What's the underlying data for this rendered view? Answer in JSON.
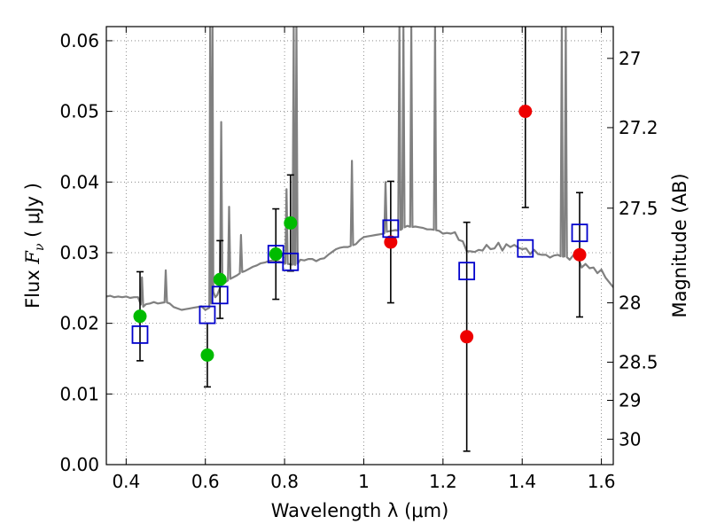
{
  "chart_data": {
    "type": "scatter",
    "xlabel": "Wavelength  λ (μm)",
    "ylabel_left_prefix": "Flux ",
    "ylabel_left_symbol": "F",
    "ylabel_left_sub": "ν",
    "ylabel_left_suffix": "  ( μJy )",
    "ylabel_right": "Magnitude (AB)",
    "xlim": [
      0.35,
      1.63
    ],
    "ylim": [
      0.0,
      0.062
    ],
    "grid": true,
    "x_ticks": [
      0.4,
      0.6,
      0.8,
      1.0,
      1.2,
      1.4,
      1.6
    ],
    "x_tick_labels": [
      "0.4",
      "0.6",
      "0.8",
      "1",
      "1.2",
      "1.4",
      "1.6"
    ],
    "y_ticks": [
      0.0,
      0.01,
      0.02,
      0.03,
      0.04,
      0.05,
      0.06
    ],
    "y_tick_labels": [
      "0.00",
      "0.01",
      "0.02",
      "0.03",
      "0.04",
      "0.05",
      "0.06"
    ],
    "right_ticks": [
      {
        "flux": 0.0575,
        "label": "27"
      },
      {
        "flux": 0.0477,
        "label": "27.2"
      },
      {
        "flux": 0.0363,
        "label": "27.5"
      },
      {
        "flux": 0.0229,
        "label": "28"
      },
      {
        "flux": 0.0145,
        "label": "28.5"
      },
      {
        "flux": 0.0091,
        "label": "29"
      },
      {
        "flux": 0.0036,
        "label": "30"
      }
    ],
    "colors": {
      "spectrum": "#808080",
      "green": "#00bb00",
      "red": "#ee0000",
      "model": "#0000cc",
      "errorbar": "#000000",
      "grid": "#777777"
    },
    "spectrum": {
      "x": [
        0.35,
        0.36,
        0.37,
        0.38,
        0.39,
        0.4,
        0.41,
        0.42,
        0.43,
        0.44,
        0.45,
        0.46,
        0.47,
        0.48,
        0.49,
        0.5,
        0.51,
        0.52,
        0.53,
        0.54,
        0.55,
        0.56,
        0.57,
        0.58,
        0.59,
        0.6,
        0.61,
        0.615,
        0.62,
        0.625,
        0.63,
        0.64,
        0.65,
        0.66,
        0.67,
        0.68,
        0.69,
        0.7,
        0.71,
        0.72,
        0.73,
        0.74,
        0.75,
        0.76,
        0.77,
        0.78,
        0.79,
        0.8,
        0.81,
        0.82,
        0.825,
        0.83,
        0.84,
        0.85,
        0.86,
        0.87,
        0.88,
        0.89,
        0.9,
        0.91,
        0.92,
        0.93,
        0.94,
        0.95,
        0.96,
        0.97,
        0.98,
        0.99,
        1.0,
        1.01,
        1.02,
        1.03,
        1.04,
        1.05,
        1.06,
        1.07,
        1.08,
        1.09,
        1.1,
        1.11,
        1.12,
        1.13,
        1.14,
        1.15,
        1.16,
        1.17,
        1.18,
        1.19,
        1.2,
        1.21,
        1.22,
        1.23,
        1.24,
        1.25,
        1.26,
        1.27,
        1.28,
        1.29,
        1.3,
        1.31,
        1.32,
        1.33,
        1.34,
        1.35,
        1.36,
        1.37,
        1.38,
        1.39,
        1.4,
        1.41,
        1.42,
        1.43,
        1.44,
        1.45,
        1.46,
        1.47,
        1.48,
        1.49,
        1.5,
        1.51,
        1.52,
        1.53,
        1.54,
        1.55,
        1.56,
        1.57,
        1.58,
        1.59,
        1.6,
        1.61,
        1.62,
        1.63
      ],
      "y": [
        0.0238,
        0.0239,
        0.0237,
        0.0238,
        0.0237,
        0.0238,
        0.0236,
        0.0237,
        0.0237,
        0.0222,
        0.0227,
        0.0228,
        0.023,
        0.0228,
        0.0229,
        0.023,
        0.0228,
        0.0223,
        0.0221,
        0.0219,
        0.022,
        0.0221,
        0.0222,
        0.0223,
        0.0224,
        0.0219,
        0.0222,
        0.0228,
        0.0245,
        0.0237,
        0.024,
        0.0255,
        0.0258,
        0.0262,
        0.0265,
        0.0268,
        0.0272,
        0.0274,
        0.0277,
        0.028,
        0.0282,
        0.0285,
        0.0286,
        0.0288,
        0.0289,
        0.0288,
        0.0287,
        0.0285,
        0.0284,
        0.0283,
        0.0283,
        0.0282,
        0.029,
        0.0289,
        0.0291,
        0.0291,
        0.0288,
        0.0291,
        0.0292,
        0.0297,
        0.0301,
        0.0305,
        0.0307,
        0.0308,
        0.0308,
        0.031,
        0.0312,
        0.0318,
        0.0322,
        0.0323,
        0.0324,
        0.0325,
        0.0326,
        0.0327,
        0.033,
        0.0331,
        0.0332,
        0.0331,
        0.0335,
        0.0338,
        0.0336,
        0.0337,
        0.0336,
        0.0335,
        0.0333,
        0.0333,
        0.0332,
        0.0331,
        0.0327,
        0.0328,
        0.0327,
        0.0329,
        0.0318,
        0.0316,
        0.0302,
        0.0302,
        0.0301,
        0.0304,
        0.0303,
        0.0311,
        0.0305,
        0.0306,
        0.0314,
        0.0303,
        0.0312,
        0.0308,
        0.0311,
        0.0307,
        0.0305,
        0.0306,
        0.0298,
        0.0304,
        0.0298,
        0.0297,
        0.0297,
        0.0293,
        0.0296,
        0.0297,
        0.0294,
        0.0295,
        0.029,
        0.0297,
        0.0295,
        0.0279,
        0.0284,
        0.0278,
        0.0279,
        0.0271,
        0.0276,
        0.0265,
        0.0258,
        0.0251
      ],
      "emission_lines": [
        {
          "x": 0.44,
          "peak": 0.0265
        },
        {
          "x": 0.5,
          "peak": 0.0275
        },
        {
          "x": 0.612,
          "peak": 0.062
        },
        {
          "x": 0.618,
          "peak": 0.062
        },
        {
          "x": 0.64,
          "peak": 0.0485
        },
        {
          "x": 0.66,
          "peak": 0.0365
        },
        {
          "x": 0.69,
          "peak": 0.0325
        },
        {
          "x": 0.805,
          "peak": 0.039
        },
        {
          "x": 0.823,
          "peak": 0.062
        },
        {
          "x": 0.83,
          "peak": 0.062
        },
        {
          "x": 0.97,
          "peak": 0.043
        },
        {
          "x": 1.055,
          "peak": 0.04
        },
        {
          "x": 1.09,
          "peak": 0.062
        },
        {
          "x": 1.1,
          "peak": 0.062
        },
        {
          "x": 1.12,
          "peak": 0.062
        },
        {
          "x": 1.18,
          "peak": 0.062
        },
        {
          "x": 1.5,
          "peak": 0.062
        },
        {
          "x": 1.51,
          "peak": 0.062
        }
      ]
    },
    "series": [
      {
        "marker": "circle",
        "color": "green",
        "points": [
          {
            "x": 0.435,
            "y": 0.021,
            "err": 0.0063
          },
          {
            "x": 0.605,
            "y": 0.0155,
            "err": 0.0045
          },
          {
            "x": 0.637,
            "y": 0.0262,
            "err": 0.0055
          },
          {
            "x": 0.778,
            "y": 0.0298,
            "err": 0.0064
          },
          {
            "x": 0.815,
            "y": 0.0342,
            "err": 0.0068
          }
        ]
      },
      {
        "marker": "circle",
        "color": "red",
        "points": [
          {
            "x": 1.068,
            "y": 0.0315,
            "err": 0.0086
          },
          {
            "x": 1.26,
            "y": 0.0181,
            "err": 0.0162
          },
          {
            "x": 1.408,
            "y": 0.05,
            "err": 0.0136
          },
          {
            "x": 1.545,
            "y": 0.0297,
            "err": 0.0088
          }
        ]
      },
      {
        "marker": "square",
        "color": "model",
        "points": [
          {
            "x": 0.435,
            "y": 0.0184
          },
          {
            "x": 0.605,
            "y": 0.0212
          },
          {
            "x": 0.637,
            "y": 0.024
          },
          {
            "x": 0.778,
            "y": 0.0298
          },
          {
            "x": 0.815,
            "y": 0.0287
          },
          {
            "x": 1.068,
            "y": 0.0334
          },
          {
            "x": 1.26,
            "y": 0.0274
          },
          {
            "x": 1.408,
            "y": 0.0306
          },
          {
            "x": 1.545,
            "y": 0.0328
          }
        ]
      }
    ]
  }
}
